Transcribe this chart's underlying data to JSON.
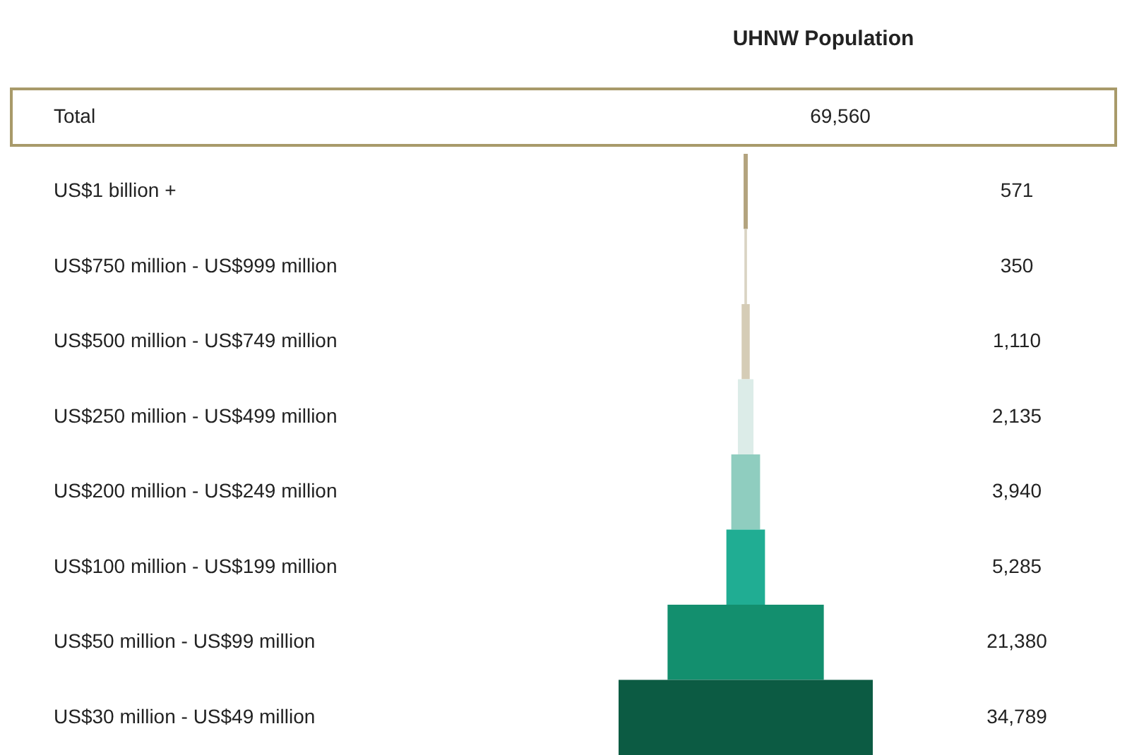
{
  "chart_data": {
    "type": "other",
    "title": "UHNW Population",
    "categories": [
      "US$1 billion +",
      "US$750 million - US$999 million",
      "US$500 million - US$749 million",
      "US$250 million - US$499 million",
      "US$200 million - US$249 million",
      "US$100 million - US$199 million",
      "US$50 million - US$99 million",
      "US$30 million - US$49 million"
    ],
    "values": [
      571,
      350,
      1110,
      2135,
      3940,
      5285,
      21380,
      34789
    ],
    "colors": [
      "#b3a37e",
      "#d9d3c3",
      "#d5ccb6",
      "#dcece8",
      "#8fcdbf",
      "#20ad93",
      "#138f6e",
      "#0c5b43"
    ],
    "value_labels": [
      "571",
      "350",
      "1,110",
      "2,135",
      "3,940",
      "5,285",
      "21,380",
      "34,789"
    ],
    "annotations": [
      "Total",
      "69,560"
    ]
  }
}
